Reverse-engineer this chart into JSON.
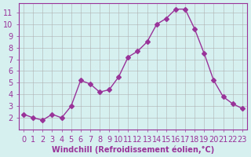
{
  "x": [
    0,
    1,
    2,
    3,
    4,
    5,
    6,
    7,
    8,
    9,
    10,
    11,
    12,
    13,
    14,
    15,
    16,
    17,
    18,
    19,
    20,
    21,
    22,
    23
  ],
  "y": [
    2.3,
    2.0,
    1.8,
    2.3,
    2.0,
    3.0,
    5.2,
    4.9,
    4.2,
    4.4,
    5.5,
    7.2,
    7.7,
    8.5,
    10.0,
    10.5,
    11.3,
    11.3,
    9.6,
    7.5,
    5.2,
    3.8,
    3.2,
    2.8
  ],
  "line_color": "#993399",
  "marker": "D",
  "marker_size": 3,
  "bg_color": "#d6f0f0",
  "grid_color": "#aaaaaa",
  "xlabel": "Windchill (Refroidissement éolien,°C)",
  "ylabel": "",
  "xlim": [
    -0.5,
    23.5
  ],
  "ylim": [
    1.0,
    11.8
  ],
  "yticks": [
    2,
    3,
    4,
    5,
    6,
    7,
    8,
    9,
    10,
    11
  ],
  "xticks": [
    0,
    1,
    2,
    3,
    4,
    5,
    6,
    7,
    8,
    9,
    10,
    11,
    12,
    13,
    14,
    15,
    16,
    17,
    18,
    19,
    20,
    21,
    22,
    23
  ],
  "tick_color": "#993399",
  "label_color": "#993399",
  "font_size": 7,
  "spine_color": "#993399"
}
